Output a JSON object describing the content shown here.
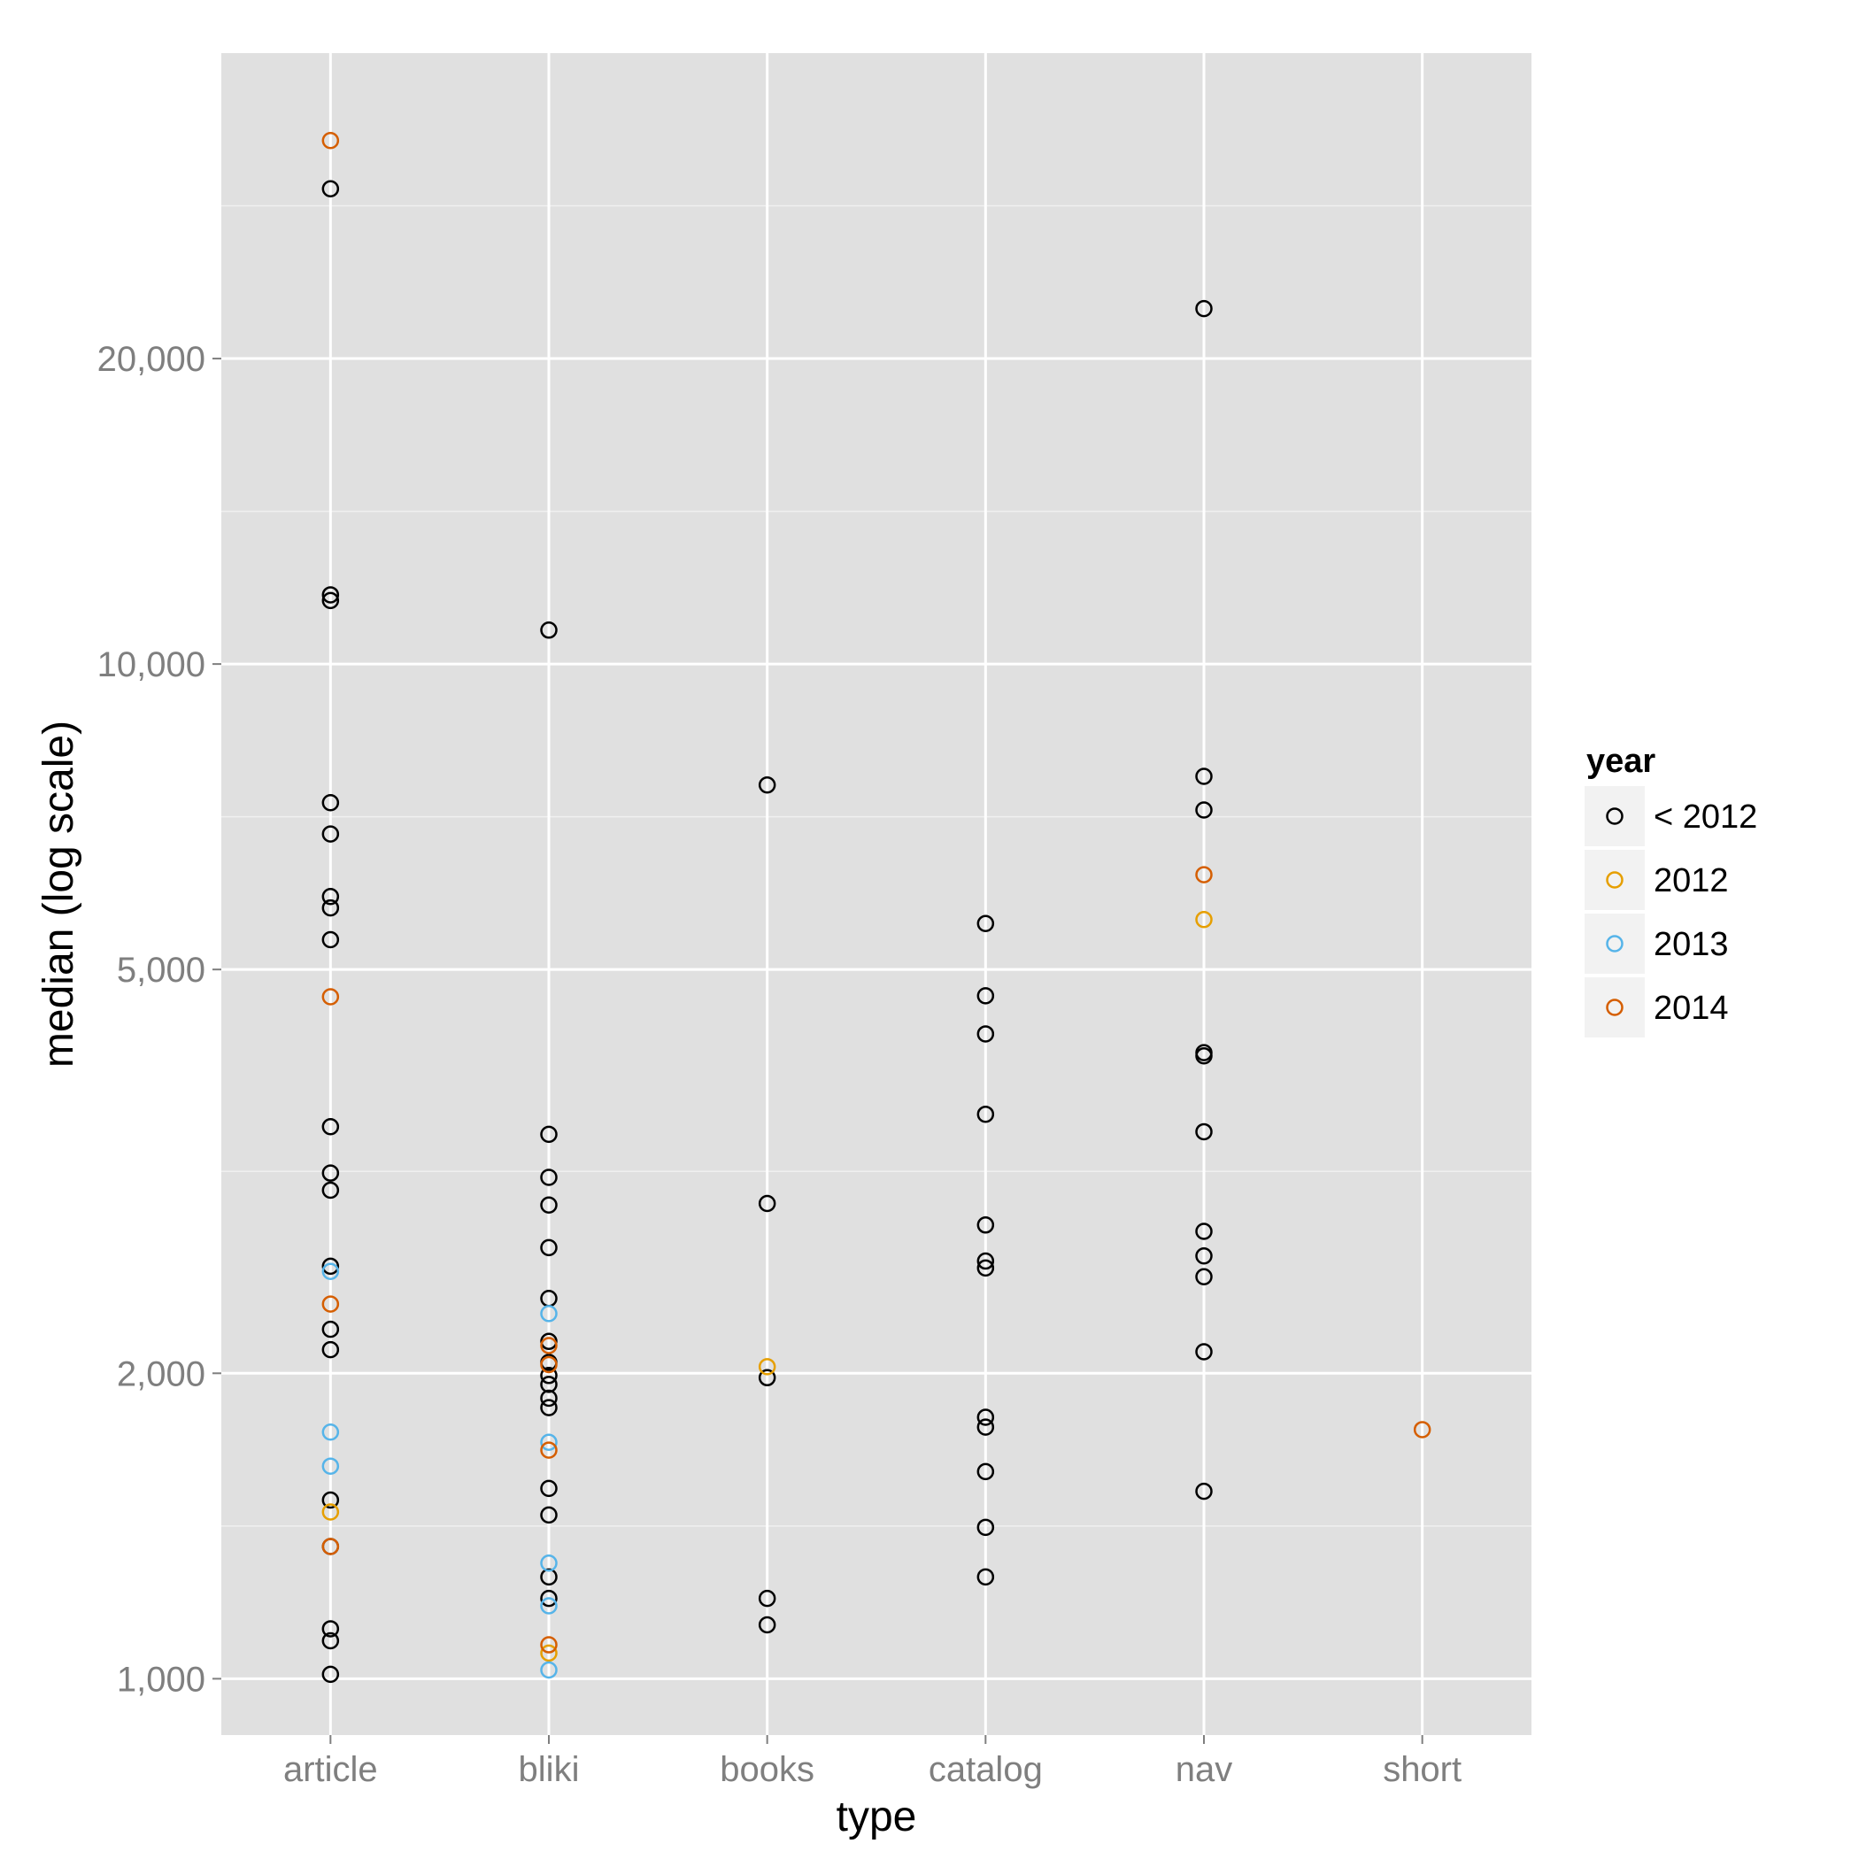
{
  "chart_data": {
    "type": "scatter",
    "title": "",
    "xlabel": "type",
    "ylabel": "median (log scale)",
    "y_scale": "log10",
    "ylim": [
      880,
      40000
    ],
    "categories": [
      "article",
      "bliki",
      "books",
      "catalog",
      "nav",
      "short"
    ],
    "y_ticks": [
      {
        "value": 1000,
        "label": "1,000"
      },
      {
        "value": 2000,
        "label": "2,000"
      },
      {
        "value": 5000,
        "label": "5,000"
      },
      {
        "value": 10000,
        "label": "10,000"
      },
      {
        "value": 20000,
        "label": "20,000"
      }
    ],
    "y_minor_ticks": [
      1414,
      3162,
      7071,
      14142,
      28284
    ],
    "grid": true,
    "legend": {
      "title": "year",
      "placement": "right",
      "entries": [
        {
          "key": "lt2012",
          "label": "< 2012",
          "color": "#000000"
        },
        {
          "key": "2012",
          "label": "2012",
          "color": "#e69f00"
        },
        {
          "key": "2013",
          "label": "2013",
          "color": "#56b4e9"
        },
        {
          "key": "2014",
          "label": "2014",
          "color": "#d55e00"
        }
      ]
    },
    "series": [
      {
        "key": "lt2012",
        "points": [
          {
            "x": "article",
            "y": 29400
          },
          {
            "x": "article",
            "y": 11700
          },
          {
            "x": "article",
            "y": 11550
          },
          {
            "x": "article",
            "y": 7300
          },
          {
            "x": "article",
            "y": 6800
          },
          {
            "x": "article",
            "y": 5900
          },
          {
            "x": "article",
            "y": 5750
          },
          {
            "x": "article",
            "y": 5350
          },
          {
            "x": "article",
            "y": 3500
          },
          {
            "x": "article",
            "y": 3150
          },
          {
            "x": "article",
            "y": 3030
          },
          {
            "x": "article",
            "y": 2550
          },
          {
            "x": "article",
            "y": 2210
          },
          {
            "x": "article",
            "y": 2110
          },
          {
            "x": "article",
            "y": 1500
          },
          {
            "x": "article",
            "y": 1350
          },
          {
            "x": "article",
            "y": 1120
          },
          {
            "x": "article",
            "y": 1090
          },
          {
            "x": "article",
            "y": 1010
          },
          {
            "x": "bliki",
            "y": 10800
          },
          {
            "x": "bliki",
            "y": 3440
          },
          {
            "x": "bliki",
            "y": 3120
          },
          {
            "x": "bliki",
            "y": 2930
          },
          {
            "x": "bliki",
            "y": 2660
          },
          {
            "x": "bliki",
            "y": 2370
          },
          {
            "x": "bliki",
            "y": 2150
          },
          {
            "x": "bliki",
            "y": 2050
          },
          {
            "x": "bliki",
            "y": 1990
          },
          {
            "x": "bliki",
            "y": 1950
          },
          {
            "x": "bliki",
            "y": 1890
          },
          {
            "x": "bliki",
            "y": 1850
          },
          {
            "x": "bliki",
            "y": 1540
          },
          {
            "x": "bliki",
            "y": 1450
          },
          {
            "x": "bliki",
            "y": 1260
          },
          {
            "x": "bliki",
            "y": 1200
          },
          {
            "x": "books",
            "y": 7600
          },
          {
            "x": "books",
            "y": 2940
          },
          {
            "x": "books",
            "y": 1980
          },
          {
            "x": "books",
            "y": 1200
          },
          {
            "x": "books",
            "y": 1130
          },
          {
            "x": "catalog",
            "y": 5550
          },
          {
            "x": "catalog",
            "y": 4710
          },
          {
            "x": "catalog",
            "y": 4320
          },
          {
            "x": "catalog",
            "y": 3600
          },
          {
            "x": "catalog",
            "y": 2800
          },
          {
            "x": "catalog",
            "y": 2580
          },
          {
            "x": "catalog",
            "y": 2540
          },
          {
            "x": "catalog",
            "y": 1810
          },
          {
            "x": "catalog",
            "y": 1770
          },
          {
            "x": "catalog",
            "y": 1600
          },
          {
            "x": "catalog",
            "y": 1410
          },
          {
            "x": "catalog",
            "y": 1260
          },
          {
            "x": "nav",
            "y": 22400
          },
          {
            "x": "nav",
            "y": 7750
          },
          {
            "x": "nav",
            "y": 7180
          },
          {
            "x": "nav",
            "y": 4140
          },
          {
            "x": "nav",
            "y": 4110
          },
          {
            "x": "nav",
            "y": 3460
          },
          {
            "x": "nav",
            "y": 2760
          },
          {
            "x": "nav",
            "y": 2610
          },
          {
            "x": "nav",
            "y": 2490
          },
          {
            "x": "nav",
            "y": 2100
          },
          {
            "x": "nav",
            "y": 1530
          }
        ]
      },
      {
        "key": "2012",
        "points": [
          {
            "x": "article",
            "y": 1460
          },
          {
            "x": "bliki",
            "y": 1060
          },
          {
            "x": "books",
            "y": 2030
          },
          {
            "x": "nav",
            "y": 5600
          }
        ]
      },
      {
        "key": "2013",
        "points": [
          {
            "x": "article",
            "y": 2520
          },
          {
            "x": "article",
            "y": 1750
          },
          {
            "x": "article",
            "y": 1620
          },
          {
            "x": "bliki",
            "y": 2290
          },
          {
            "x": "bliki",
            "y": 1710
          },
          {
            "x": "bliki",
            "y": 1300
          },
          {
            "x": "bliki",
            "y": 1180
          },
          {
            "x": "bliki",
            "y": 1020
          }
        ]
      },
      {
        "key": "2014",
        "points": [
          {
            "x": "article",
            "y": 32800
          },
          {
            "x": "article",
            "y": 4700
          },
          {
            "x": "article",
            "y": 2340
          },
          {
            "x": "article",
            "y": 1350
          },
          {
            "x": "bliki",
            "y": 2130
          },
          {
            "x": "bliki",
            "y": 2040
          },
          {
            "x": "bliki",
            "y": 1680
          },
          {
            "x": "bliki",
            "y": 1080
          },
          {
            "x": "nav",
            "y": 6200
          },
          {
            "x": "short",
            "y": 1760
          }
        ]
      }
    ]
  }
}
